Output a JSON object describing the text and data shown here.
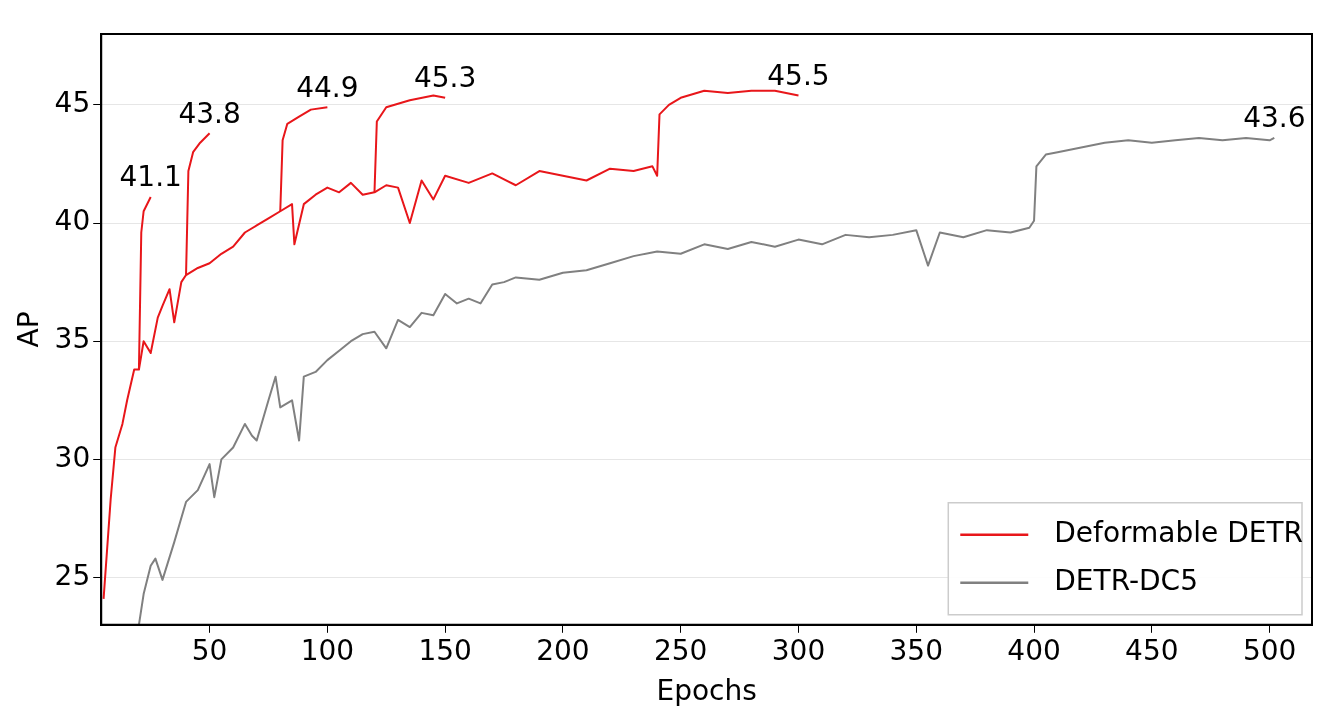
{
  "chart_data": {
    "type": "line",
    "xlabel": "Epochs",
    "ylabel": "AP",
    "xlim": [
      4,
      518
    ],
    "ylim": [
      23,
      48
    ],
    "xticks": [
      50,
      100,
      150,
      200,
      250,
      300,
      350,
      400,
      450,
      500
    ],
    "yticks": [
      25,
      30,
      35,
      40,
      45
    ],
    "grid": "y",
    "legend": "bottom right",
    "marker": "none",
    "line_style": "solid",
    "series": [
      {
        "name": "Deformable DETR",
        "color": "#e8161a",
        "x": [
          5,
          8,
          10,
          13,
          15,
          18,
          20,
          22,
          25,
          28,
          30,
          33,
          35,
          38,
          40,
          45,
          50,
          55,
          60,
          65,
          70,
          75,
          80,
          85,
          86,
          90,
          95,
          100,
          105,
          110,
          115,
          120,
          125,
          130,
          135,
          140,
          145,
          150,
          160,
          170,
          180,
          190,
          200,
          210,
          220,
          230,
          238,
          240,
          241,
          245,
          250,
          260,
          270,
          280,
          290,
          300
        ],
        "values": [
          24.1,
          28.3,
          30.5,
          31.5,
          32.5,
          33.8,
          33.8,
          35.0,
          34.5,
          36.0,
          36.5,
          37.2,
          35.8,
          37.5,
          37.8,
          38.1,
          38.3,
          38.7,
          39.0,
          39.6,
          39.9,
          40.2,
          40.5,
          40.8,
          39.1,
          40.8,
          41.2,
          41.5,
          41.3,
          41.7,
          41.2,
          41.3,
          41.6,
          41.5,
          40.0,
          41.8,
          41.0,
          42.0,
          41.7,
          42.1,
          41.6,
          42.2,
          42.0,
          41.8,
          42.3,
          42.2,
          42.4,
          42.0,
          44.6,
          45.0,
          45.3,
          45.6,
          45.5,
          45.6,
          45.6,
          45.4
        ]
      },
      {
        "color": "#e8161a",
        "x": [
          20,
          21,
          22,
          25
        ],
        "values": [
          33.8,
          39.6,
          40.5,
          41.1
        ]
      },
      {
        "color": "#e8161a",
        "x": [
          40,
          41,
          43,
          46,
          50
        ],
        "values": [
          37.8,
          42.2,
          43.0,
          43.4,
          43.8
        ]
      },
      {
        "color": "#e8161a",
        "x": [
          80,
          81,
          83,
          88,
          93,
          100
        ],
        "values": [
          40.5,
          43.5,
          44.2,
          44.5,
          44.8,
          44.9
        ]
      },
      {
        "color": "#e8161a",
        "x": [
          120,
          121,
          125,
          135,
          145,
          150
        ],
        "values": [
          41.3,
          44.3,
          44.9,
          45.2,
          45.4,
          45.3
        ]
      },
      {
        "name": "DETR-DC5",
        "color": "#808080",
        "x": [
          20,
          22,
          25,
          27,
          30,
          35,
          40,
          45,
          50,
          52,
          55,
          60,
          65,
          68,
          70,
          75,
          78,
          80,
          85,
          88,
          90,
          95,
          100,
          105,
          110,
          115,
          120,
          125,
          130,
          135,
          140,
          145,
          150,
          155,
          160,
          165,
          170,
          175,
          180,
          190,
          200,
          210,
          220,
          230,
          240,
          250,
          260,
          270,
          280,
          290,
          300,
          310,
          320,
          330,
          340,
          350,
          355,
          360,
          370,
          380,
          390,
          398,
          400,
          401,
          405,
          410,
          420,
          430,
          440,
          450,
          460,
          470,
          480,
          490,
          500,
          502
        ],
        "values": [
          23.0,
          24.3,
          25.5,
          25.8,
          24.9,
          26.5,
          28.2,
          28.7,
          29.8,
          28.4,
          30.0,
          30.5,
          31.5,
          31.0,
          30.8,
          32.5,
          33.5,
          32.2,
          32.5,
          30.8,
          33.5,
          33.7,
          34.2,
          34.6,
          35.0,
          35.3,
          35.4,
          34.7,
          35.9,
          35.6,
          36.2,
          36.1,
          37.0,
          36.6,
          36.8,
          36.6,
          37.4,
          37.5,
          37.7,
          37.6,
          37.9,
          38.0,
          38.3,
          38.6,
          38.8,
          38.7,
          39.1,
          38.9,
          39.2,
          39.0,
          39.3,
          39.1,
          39.5,
          39.4,
          39.5,
          39.7,
          38.2,
          39.6,
          39.4,
          39.7,
          39.6,
          39.8,
          40.1,
          42.4,
          42.9,
          43.0,
          43.2,
          43.4,
          43.5,
          43.4,
          43.5,
          43.6,
          43.5,
          43.6,
          43.5,
          43.6
        ]
      }
    ],
    "annotations": [
      {
        "text": "41.1",
        "x": 25,
        "y": 41.1
      },
      {
        "text": "43.8",
        "x": 50,
        "y": 43.8
      },
      {
        "text": "44.9",
        "x": 100,
        "y": 44.9
      },
      {
        "text": "45.3",
        "x": 150,
        "y": 45.3
      },
      {
        "text": "45.5",
        "x": 300,
        "y": 45.4
      },
      {
        "text": "43.6",
        "x": 502,
        "y": 43.6
      }
    ]
  }
}
